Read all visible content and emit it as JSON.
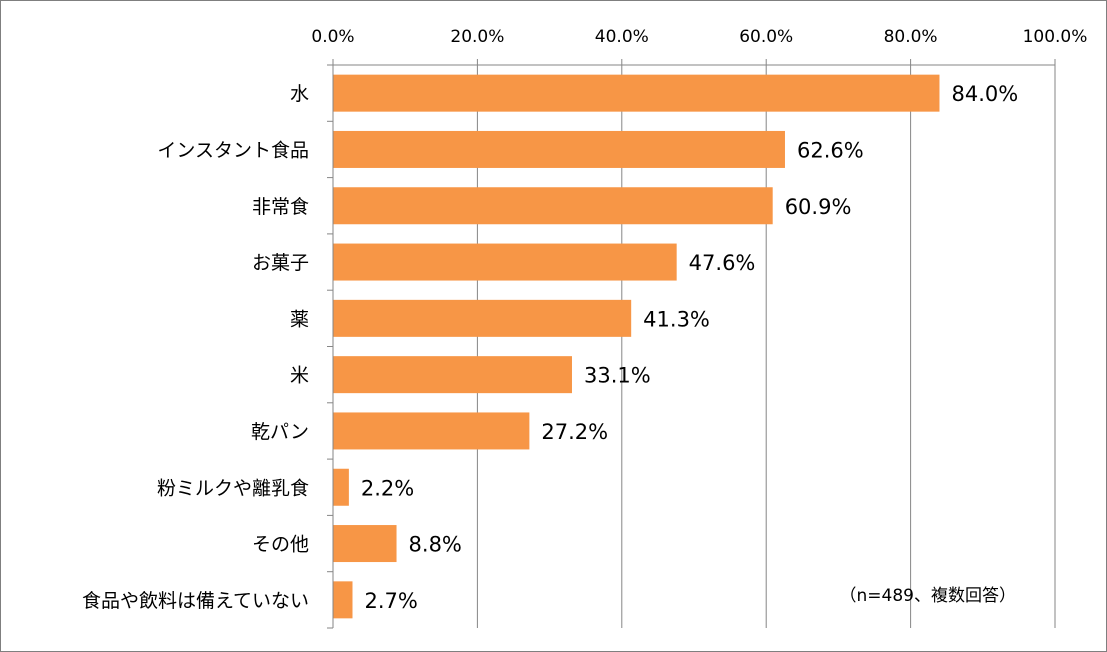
{
  "chart_data": {
    "type": "bar",
    "orientation": "horizontal",
    "categories": [
      "水",
      "インスタント食品",
      "非常食",
      "お菓子",
      "薬",
      "米",
      "乾パン",
      "粉ミルクや離乳食",
      "その他",
      "食品や飲料は備えていない"
    ],
    "values": [
      84.0,
      62.6,
      60.9,
      47.6,
      41.3,
      33.1,
      27.2,
      2.2,
      8.8,
      2.7
    ],
    "value_labels": [
      "84.0%",
      "62.6%",
      "60.9%",
      "47.6%",
      "41.3%",
      "33.1%",
      "27.2%",
      "2.2%",
      "8.8%",
      "2.7%"
    ],
    "x_ticks": [
      "0.0%",
      "20.0%",
      "40.0%",
      "60.0%",
      "80.0%",
      "100.0%"
    ],
    "xlim": [
      0,
      100
    ],
    "axis_position": "top",
    "grid": true,
    "bar_color": "#F79646",
    "grid_color": "#868686",
    "note": "（n=489、複数回答）"
  }
}
